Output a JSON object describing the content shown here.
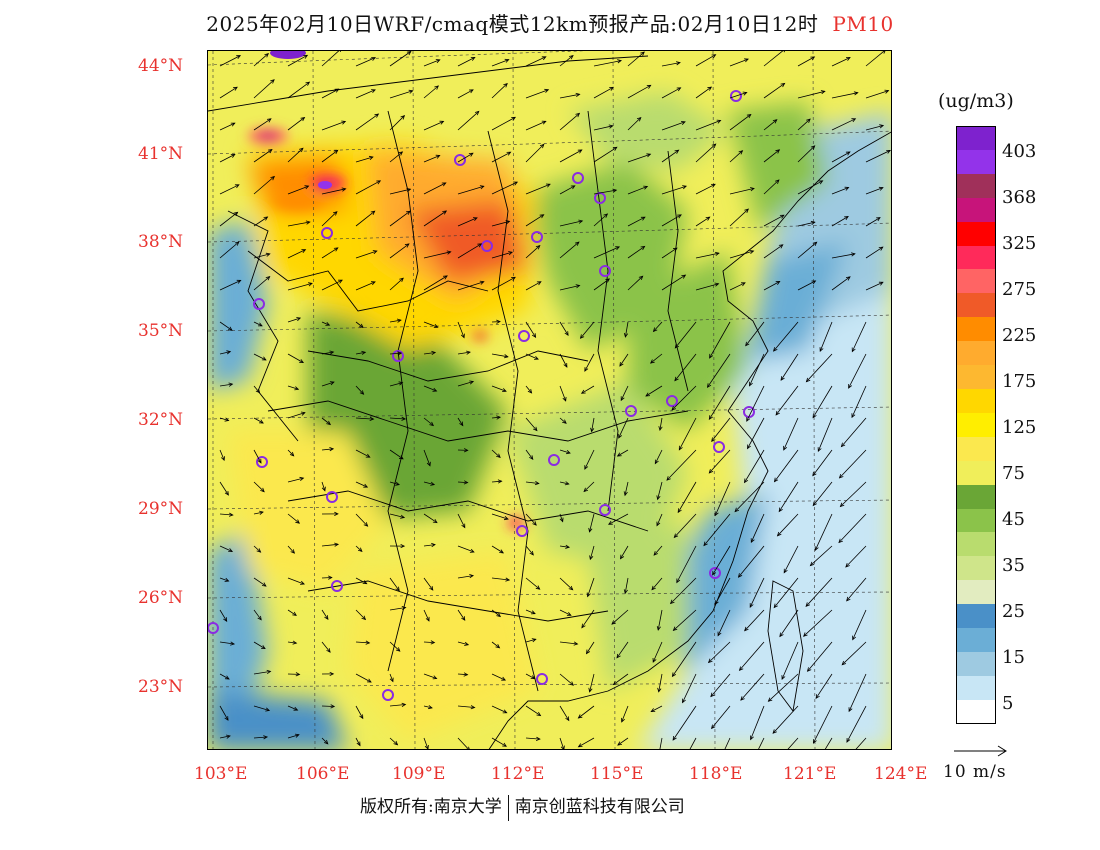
{
  "title": {
    "main": "2025年02月10日WRF/cmaq模式12km预报产品:02月10日12时",
    "pollutant": "PM10"
  },
  "axes": {
    "lat_ticks": [
      "44°N",
      "41°N",
      "38°N",
      "35°N",
      "32°N",
      "29°N",
      "26°N",
      "23°N"
    ],
    "lon_ticks": [
      "103°E",
      "106°E",
      "109°E",
      "112°E",
      "115°E",
      "118°E",
      "121°E",
      "124°E"
    ]
  },
  "colorbar": {
    "unit": "(ug/m3)",
    "labels": [
      "403",
      "368",
      "325",
      "275",
      "225",
      "175",
      "125",
      "75",
      "45",
      "35",
      "25",
      "15",
      "5"
    ],
    "colors": [
      "#7e22ce",
      "#9333ea",
      "#a0305a",
      "#c7147a",
      "#ff0000",
      "#ff2a5a",
      "#ff6464",
      "#f05a28",
      "#ff8c00",
      "#ffab2e",
      "#fdb830",
      "#ffd700",
      "#ffee00",
      "#fbe84e",
      "#f0ee5a",
      "#6aa636",
      "#8bc34a",
      "#b9dc6e",
      "#cfe58a",
      "#e2ecc0",
      "#4a90c8",
      "#6baed6",
      "#9ecae1",
      "#c8e6f5",
      "#ffffff"
    ]
  },
  "wind_reference": "10 m/s",
  "footer": {
    "left": "版权所有:南京大学",
    "right": "南京创蓝科技有限公司"
  },
  "colors": {
    "label_red": "#e8322e"
  }
}
